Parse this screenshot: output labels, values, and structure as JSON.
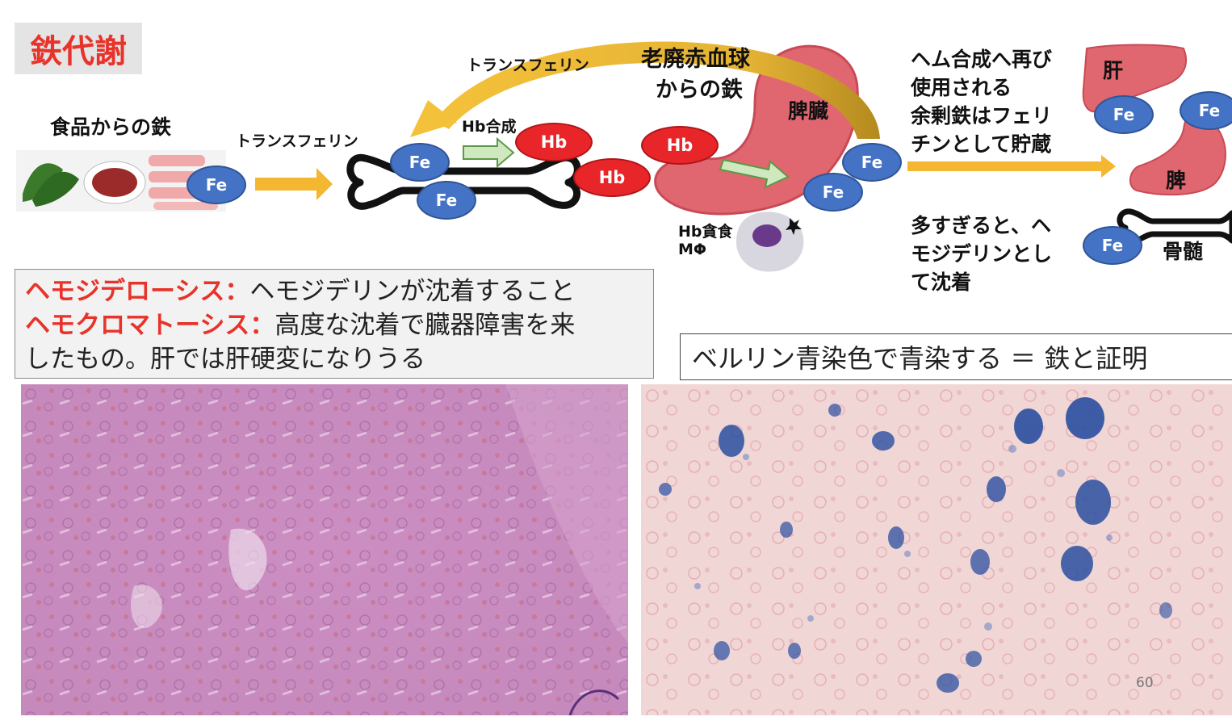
{
  "title": "鉄代謝",
  "labels": {
    "food_iron": "食品からの鉄",
    "transferrin_1": "トランスフェリン",
    "transferrin_2": "トランスフェリン",
    "hb_synthesis": "Hb合成",
    "old_rbc_line1": "老廃赤血球",
    "old_rbc_line2": "からの鉄",
    "spleen": "脾臓",
    "hb_phago_line1": "Hb貪食",
    "hb_phago_line2": "MΦ",
    "heme_line1": "ヘム合成へ再び",
    "heme_line2": "使用される",
    "heme_line3": "余剰鉄はフェリ",
    "heme_line4": "チンとして貯蔵",
    "excess_line1": "多すぎると、ヘ",
    "excess_line2": "モジデリンとし",
    "excess_line3": "て沈着",
    "liver": "肝",
    "spleen_small": "脾",
    "marrow": "骨髄"
  },
  "badges": {
    "fe": "Fe",
    "hb": "Hb"
  },
  "definitions": {
    "term1": "ヘモジデローシス：",
    "desc1": "ヘモジデリンが沈着すること",
    "term2": "ヘモクロマトーシス：",
    "desc2": "高度な沈着で臓器障害を来",
    "desc2b": "したもの。肝では肝硬変になりうる"
  },
  "berlin_caption": "ベルリン青染色で青染する ＝ 鉄と証明",
  "page_number": "60",
  "colors": {
    "title_red": "#e8332a",
    "fe_blue": "#4472c4",
    "hb_red": "#e8262a",
    "arrow_gold": "#f4b731",
    "organ_pink": "#e06670",
    "he_stain": "#c98bbd",
    "berlin_bg": "#f1d6d6",
    "berlin_blue": "#2a4fa0"
  }
}
